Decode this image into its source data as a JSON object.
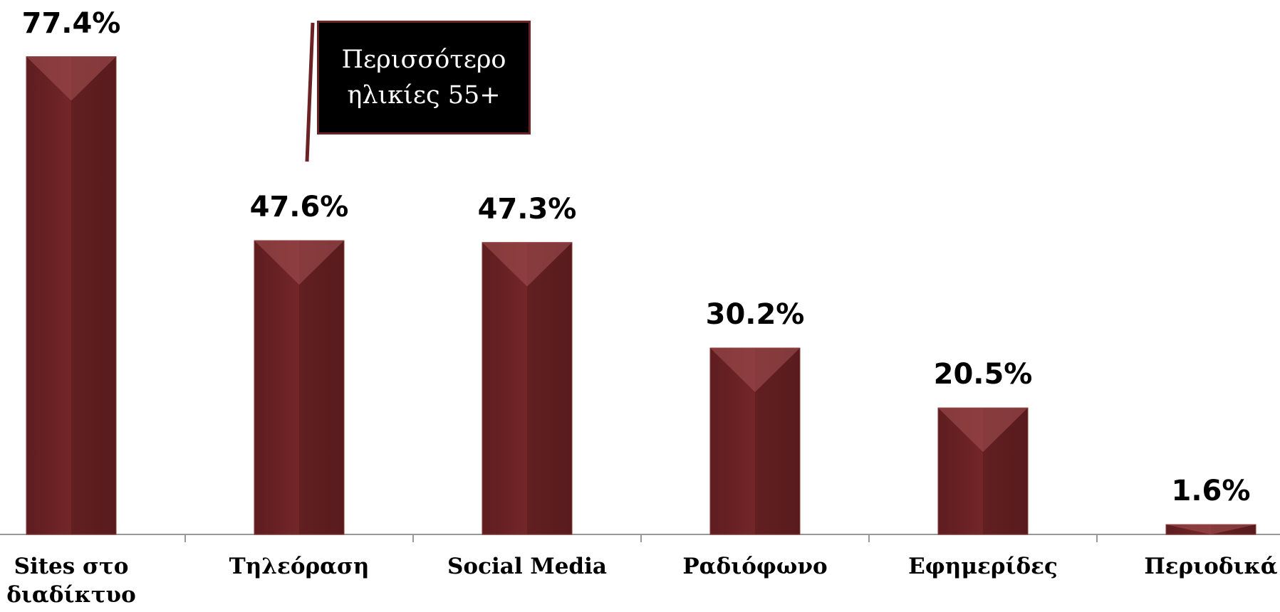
{
  "chart_data": {
    "type": "bar",
    "categories": [
      "Sites στο διαδίκτυο",
      "Τηλεόραση",
      "Social Media",
      "Ραδιόφωνο",
      "Εφημερίδες",
      "Περιοδικά"
    ],
    "values": [
      77.4,
      47.6,
      47.3,
      30.2,
      20.5,
      1.6
    ],
    "value_labels": [
      "77.4%",
      "47.6%",
      "47.3%",
      "30.2%",
      "20.5%",
      "1.6%"
    ],
    "color": "#6b2224",
    "ylim": [
      0,
      80
    ],
    "annotation": "Περισσότερο ηλικίες 55+"
  }
}
